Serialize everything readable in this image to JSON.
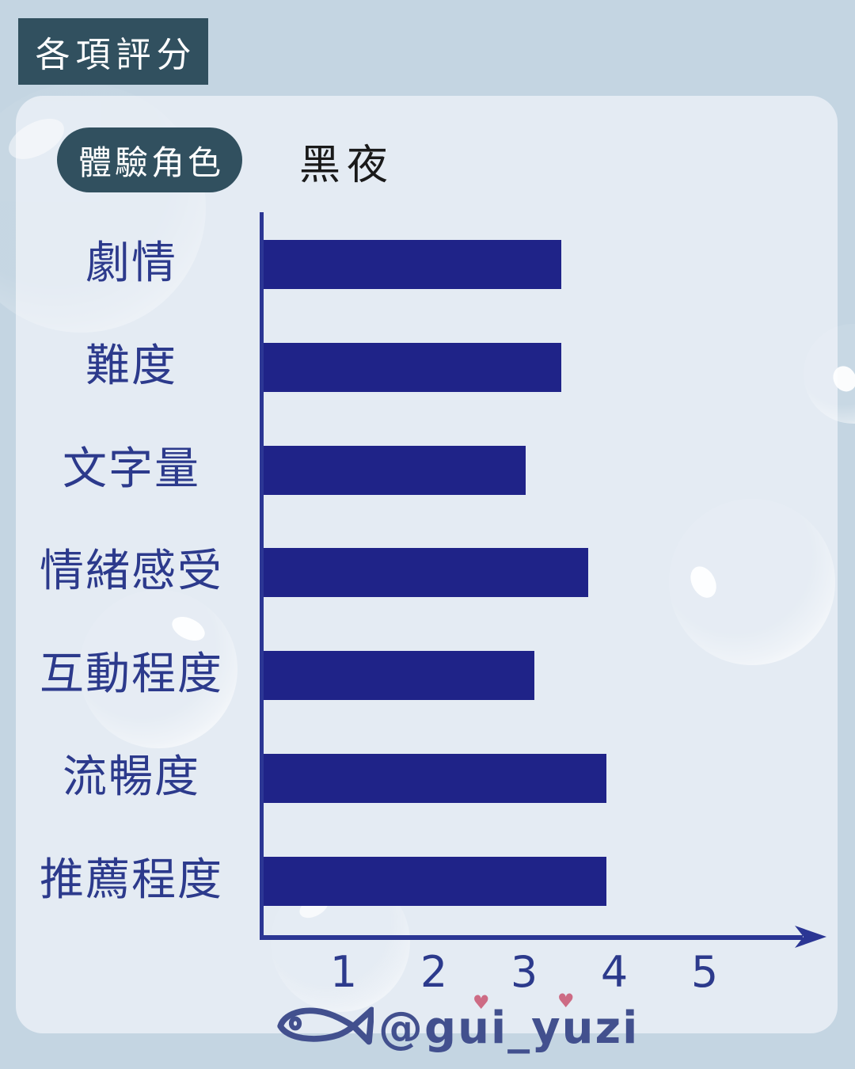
{
  "header": {
    "title": "各項評分"
  },
  "role": {
    "badge_label": "體驗角色",
    "value": "黑夜"
  },
  "chart_data": {
    "type": "bar",
    "orientation": "horizontal",
    "title": "各項評分",
    "subtitle_badge": "體驗角色",
    "series_name": "黑夜",
    "categories": [
      "劇情",
      "難度",
      "文字量",
      "情緒感受",
      "互動程度",
      "流暢度",
      "推薦程度"
    ],
    "values": [
      3.3,
      3.3,
      2.9,
      3.6,
      3.0,
      3.8,
      3.8
    ],
    "x_ticks": [
      "1",
      "2",
      "3",
      "4",
      "5"
    ],
    "xlim": [
      0,
      5
    ],
    "xlabel": "",
    "ylabel": "",
    "grid": false,
    "legend": false,
    "bar_color": "#1f2388",
    "axis_color": "#2b3694",
    "label_color": "#2c3a8c"
  },
  "watermark": {
    "handle": "@gui_yuzi",
    "icon": "fish-doodle-icon"
  },
  "colors": {
    "outer_background": "#c4d5e2",
    "panel_background": "#e4ebf3",
    "title_box": "#31505f",
    "badge": "#31505f",
    "role_text": "#1a1a1a",
    "watermark_text": "#42508e",
    "heart": "#cd6b84"
  }
}
